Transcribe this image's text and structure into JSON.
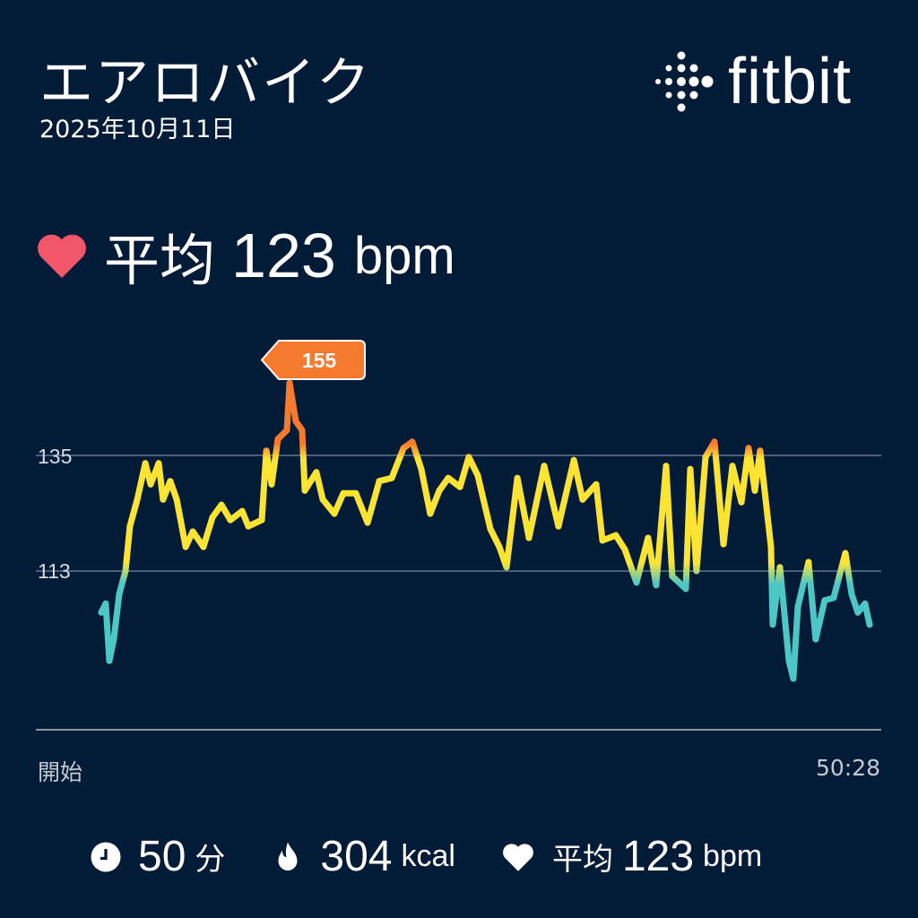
{
  "header": {
    "title": "エアロバイク",
    "date": "2025年10月11日",
    "logo_text": "fitbit"
  },
  "summary": {
    "heart_icon": "heart-icon",
    "label": "平均",
    "value": "123",
    "unit": "bpm"
  },
  "chart_data": {
    "type": "line",
    "xlabel_start": "開始",
    "xlabel_end": "50:28",
    "y_ticks": [
      "135",
      "113"
    ],
    "peak_label": "155",
    "grid": true,
    "colors": {
      "low": "#4cc7c6",
      "mid": "#fde433",
      "high": "#f57a2e"
    },
    "x_unit": "minutes",
    "y_unit": "bpm",
    "points": [
      [
        0,
        105.1
      ],
      [
        0.29,
        106.8
      ],
      [
        0.53,
        95.9
      ],
      [
        0.82,
        100
      ],
      [
        1.18,
        108.6
      ],
      [
        1.59,
        113
      ],
      [
        1.88,
        121.5
      ],
      [
        2.36,
        126.6
      ],
      [
        2.89,
        133.5
      ],
      [
        3.24,
        129.5
      ],
      [
        3.77,
        133.5
      ],
      [
        4.06,
        126.6
      ],
      [
        4.53,
        130.1
      ],
      [
        4.95,
        126.6
      ],
      [
        5.54,
        117.6
      ],
      [
        6.01,
        120.5
      ],
      [
        6.71,
        117.6
      ],
      [
        7.3,
        123.2
      ],
      [
        7.89,
        125.6
      ],
      [
        8.48,
        122.7
      ],
      [
        9.25,
        124.4
      ],
      [
        9.66,
        121.5
      ],
      [
        10.54,
        122.7
      ],
      [
        10.84,
        135.9
      ],
      [
        11.19,
        129.5
      ],
      [
        11.6,
        138.1
      ],
      [
        12.19,
        139.8
      ],
      [
        12.37,
        148.8
      ],
      [
        12.78,
        141.5
      ],
      [
        13.19,
        139.8
      ],
      [
        13.37,
        128.3
      ],
      [
        14.13,
        131.8
      ],
      [
        14.55,
        126.6
      ],
      [
        15.31,
        123.9
      ],
      [
        15.9,
        127.8
      ],
      [
        16.72,
        127.8
      ],
      [
        17.49,
        122.2
      ],
      [
        18.26,
        130.1
      ],
      [
        19.08,
        130.7
      ],
      [
        19.85,
        136.4
      ],
      [
        20.43,
        137.6
      ],
      [
        21.02,
        132.4
      ],
      [
        21.61,
        123.9
      ],
      [
        22.2,
        128.3
      ],
      [
        22.79,
        130.7
      ],
      [
        23.56,
        129
      ],
      [
        24.14,
        134.7
      ],
      [
        24.73,
        131.2
      ],
      [
        25.56,
        121
      ],
      [
        26.15,
        117.6
      ],
      [
        26.62,
        113.7
      ],
      [
        27.33,
        130.7
      ],
      [
        28.09,
        119.3
      ],
      [
        29.09,
        133
      ],
      [
        30.03,
        121.5
      ],
      [
        31.04,
        134.1
      ],
      [
        31.62,
        126.6
      ],
      [
        32.51,
        129.5
      ],
      [
        32.92,
        118.8
      ],
      [
        33.8,
        119.8
      ],
      [
        34.39,
        117.1
      ],
      [
        35.16,
        110.8
      ],
      [
        35.92,
        119.3
      ],
      [
        36.45,
        110.3
      ],
      [
        37.1,
        133
      ],
      [
        37.51,
        112
      ],
      [
        38.4,
        109.6
      ],
      [
        38.69,
        132.4
      ],
      [
        39.1,
        113
      ],
      [
        39.69,
        134.7
      ],
      [
        40.28,
        137.6
      ],
      [
        40.87,
        118.1
      ],
      [
        41.46,
        133
      ],
      [
        42.05,
        126.1
      ],
      [
        42.52,
        136.4
      ],
      [
        42.93,
        128.3
      ],
      [
        43.28,
        135.9
      ],
      [
        43.99,
        117.6
      ],
      [
        44.11,
        102.8
      ],
      [
        44.58,
        113.7
      ],
      [
        45.17,
        95.9
      ],
      [
        45.46,
        92.5
      ],
      [
        45.76,
        106.2
      ],
      [
        46.46,
        114.7
      ],
      [
        46.93,
        100
      ],
      [
        47.52,
        107.4
      ],
      [
        48.11,
        107.9
      ],
      [
        48.88,
        116.4
      ],
      [
        49.29,
        108.6
      ],
      [
        49.7,
        105.1
      ],
      [
        50.17,
        106.8
      ],
      [
        50.47,
        102.8
      ]
    ]
  },
  "footer": {
    "duration": {
      "icon": "clock-icon",
      "value": "50",
      "unit": "分"
    },
    "calories": {
      "icon": "flame-icon",
      "value": "304",
      "unit": "kcal"
    },
    "heart": {
      "icon": "heart-icon",
      "label": "平均",
      "value": "123",
      "unit": "bpm"
    }
  }
}
